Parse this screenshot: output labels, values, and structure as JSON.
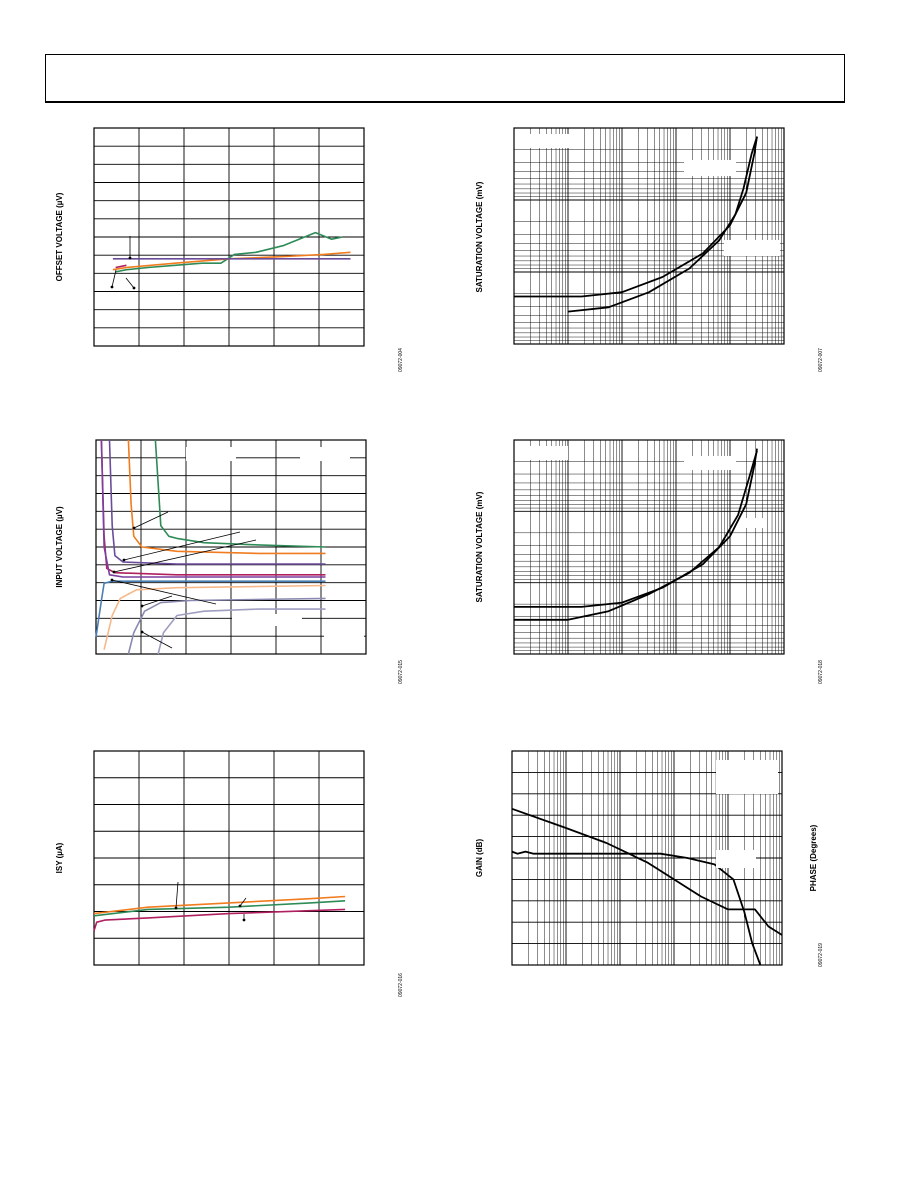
{
  "page": {
    "header_text": ""
  },
  "chart_data": [
    {
      "id": "offset-voltage",
      "type": "line",
      "ylabel": "OFFSET VOLTAGE (µV)",
      "fig_code": "09072-004",
      "grid": {
        "cols": 6,
        "rows": 12,
        "log_x": false
      },
      "series": [
        {
          "color": "#2e8b57",
          "points": [
            [
              0.08,
              0.66
            ],
            [
              0.12,
              0.65
            ],
            [
              0.2,
              0.64
            ],
            [
              0.3,
              0.63
            ],
            [
              0.4,
              0.62
            ],
            [
              0.47,
              0.62
            ],
            [
              0.52,
              0.58
            ],
            [
              0.6,
              0.57
            ],
            [
              0.7,
              0.54
            ],
            [
              0.78,
              0.5
            ],
            [
              0.82,
              0.48
            ],
            [
              0.86,
              0.5
            ],
            [
              0.88,
              0.51
            ],
            [
              0.92,
              0.5
            ]
          ]
        },
        {
          "color": "#f07c1f",
          "points": [
            [
              0.07,
              0.65
            ],
            [
              0.12,
              0.64
            ],
            [
              0.3,
              0.62
            ],
            [
              0.5,
              0.6
            ],
            [
              0.7,
              0.59
            ],
            [
              0.85,
              0.58
            ],
            [
              0.95,
              0.57
            ]
          ]
        },
        {
          "color": "#6b4c9a",
          "points": [
            [
              0.07,
              0.6
            ],
            [
              0.3,
              0.6
            ],
            [
              0.6,
              0.6
            ],
            [
              0.95,
              0.6
            ]
          ]
        },
        {
          "color": "#b02060",
          "points": [
            [
              0.08,
              0.64
            ],
            [
              0.12,
              0.63
            ]
          ]
        }
      ]
    },
    {
      "id": "input-voltage",
      "type": "line",
      "ylabel": "INPUT VOLTAGE (µV)",
      "fig_code": "09072-015",
      "grid": {
        "cols": 6,
        "rows": 12,
        "log_x": false
      },
      "series": [
        {
          "color": "#2e8b57",
          "points": [
            [
              0.22,
              0.0
            ],
            [
              0.23,
              0.2
            ],
            [
              0.24,
              0.4
            ],
            [
              0.27,
              0.45
            ],
            [
              0.3,
              0.46
            ],
            [
              0.4,
              0.48
            ],
            [
              0.6,
              0.49
            ],
            [
              0.85,
              0.5
            ]
          ]
        },
        {
          "color": "#f07c1f",
          "points": [
            [
              0.12,
              0.0
            ],
            [
              0.13,
              0.3
            ],
            [
              0.14,
              0.45
            ],
            [
              0.17,
              0.5
            ],
            [
              0.3,
              0.52
            ],
            [
              0.6,
              0.53
            ],
            [
              0.85,
              0.53
            ]
          ]
        },
        {
          "color": "#6b4c9a",
          "points": [
            [
              0.05,
              0.0
            ],
            [
              0.06,
              0.4
            ],
            [
              0.07,
              0.54
            ],
            [
              0.1,
              0.57
            ],
            [
              0.3,
              0.58
            ],
            [
              0.85,
              0.58
            ]
          ]
        },
        {
          "color": "#b02060",
          "points": [
            [
              0.02,
              0.0
            ],
            [
              0.03,
              0.45
            ],
            [
              0.04,
              0.6
            ],
            [
              0.07,
              0.62
            ],
            [
              0.3,
              0.63
            ],
            [
              0.85,
              0.63
            ]
          ]
        },
        {
          "color": "#7a3fa0",
          "points": [
            [
              0.02,
              0.0
            ],
            [
              0.03,
              0.5
            ],
            [
              0.05,
              0.63
            ],
            [
              0.1,
              0.64
            ],
            [
              0.5,
              0.64
            ],
            [
              0.85,
              0.64
            ]
          ]
        },
        {
          "color": "#f6b88a",
          "points": [
            [
              0.03,
              0.98
            ],
            [
              0.06,
              0.82
            ],
            [
              0.09,
              0.74
            ],
            [
              0.15,
              0.7
            ],
            [
              0.3,
              0.69
            ],
            [
              0.85,
              0.68
            ]
          ]
        },
        {
          "color": "#4a7fb5",
          "points": [
            [
              0.0,
              0.92
            ],
            [
              0.02,
              0.75
            ],
            [
              0.03,
              0.67
            ],
            [
              0.06,
              0.66
            ],
            [
              0.3,
              0.66
            ],
            [
              0.85,
              0.66
            ]
          ]
        },
        {
          "color": "#8a8ab0",
          "points": [
            [
              0.12,
              1.0
            ],
            [
              0.14,
              0.9
            ],
            [
              0.18,
              0.8
            ],
            [
              0.24,
              0.76
            ],
            [
              0.35,
              0.75
            ],
            [
              0.85,
              0.74
            ]
          ]
        },
        {
          "color": "#9e9ec0",
          "points": [
            [
              0.23,
              1.0
            ],
            [
              0.25,
              0.9
            ],
            [
              0.3,
              0.82
            ],
            [
              0.4,
              0.8
            ],
            [
              0.6,
              0.79
            ],
            [
              0.85,
              0.79
            ]
          ]
        }
      ]
    },
    {
      "id": "supply-current",
      "type": "line",
      "ylabel": "ISY (µA)",
      "fig_code": "09072-016",
      "grid": {
        "cols": 6,
        "rows": 8,
        "log_x": false
      },
      "series": [
        {
          "color": "#f07c1f",
          "points": [
            [
              0.0,
              0.76
            ],
            [
              0.2,
              0.73
            ],
            [
              0.5,
              0.71
            ],
            [
              0.8,
              0.69
            ],
            [
              0.93,
              0.68
            ]
          ]
        },
        {
          "color": "#2e8b57",
          "points": [
            [
              0.0,
              0.77
            ],
            [
              0.2,
              0.74
            ],
            [
              0.5,
              0.73
            ],
            [
              0.8,
              0.71
            ],
            [
              0.93,
              0.7
            ]
          ]
        },
        {
          "color": "#b02060",
          "points": [
            [
              0.0,
              0.84
            ],
            [
              0.01,
              0.8
            ],
            [
              0.04,
              0.79
            ],
            [
              0.2,
              0.78
            ],
            [
              0.5,
              0.76
            ],
            [
              0.93,
              0.74
            ]
          ]
        }
      ]
    },
    {
      "id": "saturation-voltage-1",
      "type": "line",
      "ylabel": "SATURATION VOLTAGE (mV)",
      "fig_code": "09072-007",
      "grid": {
        "cols": 5,
        "rows": 3,
        "log_x": true,
        "log_y": true
      },
      "series": [
        {
          "color": "#000000",
          "points": [
            [
              0.0,
              0.78
            ],
            [
              0.25,
              0.78
            ],
            [
              0.4,
              0.76
            ],
            [
              0.55,
              0.69
            ],
            [
              0.7,
              0.58
            ],
            [
              0.8,
              0.45
            ],
            [
              0.86,
              0.3
            ],
            [
              0.89,
              0.12
            ],
            [
              0.9,
              0.04
            ]
          ]
        },
        {
          "color": "#000000",
          "points": [
            [
              0.2,
              0.85
            ],
            [
              0.35,
              0.83
            ],
            [
              0.5,
              0.76
            ],
            [
              0.65,
              0.65
            ],
            [
              0.76,
              0.52
            ],
            [
              0.82,
              0.4
            ],
            [
              0.85,
              0.28
            ],
            [
              0.88,
              0.12
            ],
            [
              0.9,
              0.04
            ]
          ]
        }
      ]
    },
    {
      "id": "saturation-voltage-2",
      "type": "line",
      "ylabel": "SATURATION VOLTAGE (mV)",
      "fig_code": "09072-018",
      "grid": {
        "cols": 5,
        "rows": 3,
        "log_x": true,
        "log_y": true
      },
      "series": [
        {
          "color": "#000000",
          "points": [
            [
              0.0,
              0.78
            ],
            [
              0.25,
              0.78
            ],
            [
              0.4,
              0.76
            ],
            [
              0.55,
              0.69
            ],
            [
              0.7,
              0.58
            ],
            [
              0.8,
              0.45
            ],
            [
              0.86,
              0.3
            ],
            [
              0.89,
              0.12
            ],
            [
              0.9,
              0.04
            ]
          ]
        },
        {
          "color": "#000000",
          "points": [
            [
              0.0,
              0.84
            ],
            [
              0.2,
              0.84
            ],
            [
              0.35,
              0.8
            ],
            [
              0.5,
              0.72
            ],
            [
              0.65,
              0.62
            ],
            [
              0.76,
              0.5
            ],
            [
              0.83,
              0.35
            ],
            [
              0.87,
              0.18
            ],
            [
              0.9,
              0.05
            ]
          ]
        }
      ]
    },
    {
      "id": "gain-phase",
      "type": "line",
      "ylabel": "GAIN (dB)",
      "y2label": "PHASE (Degrees)",
      "fig_code": "09072-019",
      "grid": {
        "cols": 5,
        "rows": 10,
        "log_x": true
      },
      "series": [
        {
          "color": "#000000",
          "points": [
            [
              0.0,
              0.27
            ],
            [
              0.2,
              0.36
            ],
            [
              0.35,
              0.43
            ],
            [
              0.5,
              0.52
            ],
            [
              0.6,
              0.6
            ],
            [
              0.7,
              0.68
            ],
            [
              0.8,
              0.74
            ],
            [
              0.85,
              0.74
            ],
            [
              0.9,
              0.74
            ],
            [
              0.95,
              0.82
            ],
            [
              1.0,
              0.86
            ]
          ]
        },
        {
          "color": "#000000",
          "points": [
            [
              0.0,
              0.47
            ],
            [
              0.02,
              0.48
            ],
            [
              0.05,
              0.47
            ],
            [
              0.08,
              0.48
            ],
            [
              0.15,
              0.48
            ],
            [
              0.3,
              0.48
            ],
            [
              0.45,
              0.48
            ],
            [
              0.55,
              0.48
            ],
            [
              0.65,
              0.5
            ],
            [
              0.75,
              0.53
            ],
            [
              0.82,
              0.6
            ],
            [
              0.86,
              0.75
            ],
            [
              0.89,
              0.9
            ],
            [
              0.92,
              1.0
            ]
          ]
        }
      ]
    }
  ]
}
